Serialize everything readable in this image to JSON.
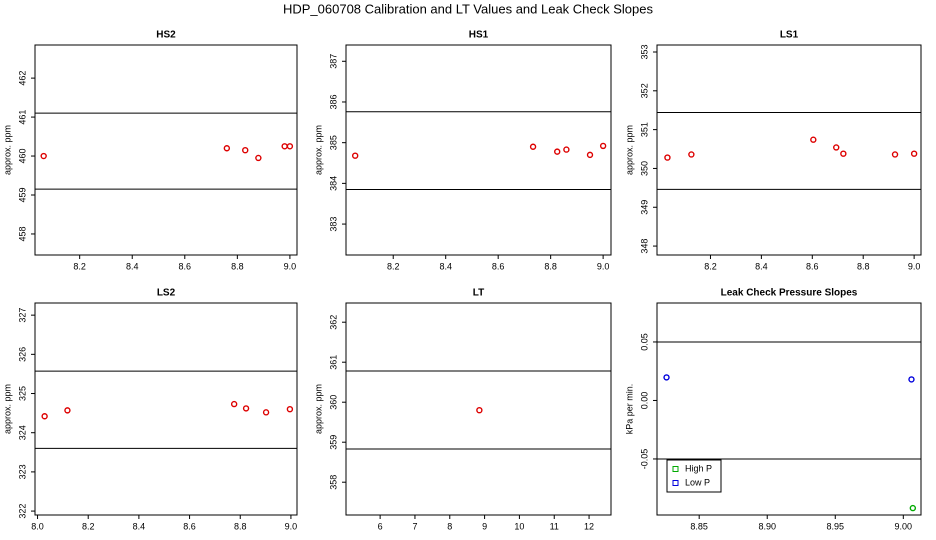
{
  "title": "HDP_060708  Calibration and LT Values and Leak Check Slopes",
  "chart_data": [
    {
      "type": "scatter",
      "title": "HS2",
      "ylabel": "approx. ppm",
      "x": [
        8.063,
        8.76,
        8.83,
        8.88,
        8.98,
        9.0
      ],
      "series": [
        {
          "color": "#dd0000",
          "values": [
            460.0,
            460.2,
            460.15,
            459.95,
            460.25,
            460.25
          ]
        }
      ],
      "xlim": [
        8.03,
        9.027
      ],
      "ylim": [
        457.46,
        462.85
      ],
      "xticks": [
        8.2,
        8.4,
        8.6,
        8.8,
        {
          "value": 9,
          "label": "9.0"
        }
      ],
      "yticks": [
        458,
        459,
        460,
        461,
        462
      ],
      "hlines": [
        461.1,
        459.15
      ]
    },
    {
      "type": "scatter",
      "title": "HS1",
      "ylabel": "approx. ppm",
      "x": [
        8.055,
        8.733,
        8.825,
        8.86,
        8.95,
        9.0
      ],
      "series": [
        {
          "color": "#dd0000",
          "values": [
            384.68,
            384.9,
            384.78,
            384.83,
            384.7,
            384.92
          ]
        }
      ],
      "xlim": [
        8.02,
        9.03
      ],
      "ylim": [
        382.24,
        387.4
      ],
      "xticks": [
        8.2,
        8.4,
        8.6,
        8.8,
        {
          "value": 9,
          "label": "9.0"
        }
      ],
      "yticks": [
        383,
        384,
        385,
        386,
        387
      ],
      "hlines": [
        385.76,
        383.85
      ]
    },
    {
      "type": "scatter",
      "title": "LS1",
      "ylabel": "approx. ppm",
      "x": [
        8.031,
        8.125,
        8.604,
        8.694,
        8.722,
        8.925,
        9.0
      ],
      "series": [
        {
          "color": "#dd0000",
          "values": [
            350.28,
            350.36,
            350.74,
            350.54,
            350.38,
            350.36,
            350.38
          ]
        }
      ],
      "xlim": [
        7.99,
        9.027
      ],
      "ylim": [
        347.77,
        353.18
      ],
      "xticks": [
        8.2,
        8.4,
        8.6,
        8.8,
        {
          "value": 9,
          "label": "9.0"
        }
      ],
      "yticks": [
        348,
        349,
        350,
        351,
        352,
        353
      ],
      "hlines": [
        351.44,
        349.46
      ]
    },
    {
      "type": "scatter",
      "title": "LS2",
      "ylabel": "approx. ppm",
      "x": [
        8.028,
        8.118,
        8.776,
        8.823,
        8.902,
        8.996
      ],
      "series": [
        {
          "color": "#dd0000",
          "values": [
            324.42,
            324.57,
            324.73,
            324.62,
            324.52,
            324.6
          ]
        }
      ],
      "xlim": [
        7.99,
        9.024
      ],
      "ylim": [
        321.9,
        327.31
      ],
      "xticks": [
        {
          "value": 8,
          "label": "8.0"
        },
        8.2,
        8.4,
        8.6,
        8.8,
        {
          "value": 9,
          "label": "9.0"
        }
      ],
      "yticks": [
        322,
        323,
        324,
        325,
        326,
        327
      ],
      "hlines": [
        325.57,
        323.6
      ]
    },
    {
      "type": "scatter",
      "title": "LT",
      "ylabel": "approx. ppm",
      "x": [
        8.85
      ],
      "series": [
        {
          "color": "#dd0000",
          "values": [
            359.8
          ]
        }
      ],
      "xlim": [
        5.02,
        12.63
      ],
      "ylim": [
        357.18,
        362.48
      ],
      "xticks": [
        6,
        7,
        8,
        9,
        10,
        11,
        12
      ],
      "yticks": [
        358,
        359,
        360,
        361,
        362
      ],
      "hlines": [
        360.78,
        358.83
      ]
    },
    {
      "type": "scatter",
      "title": "Leak Check Pressure Slopes",
      "ylabel": "kPa per min.",
      "series": [
        {
          "name": "High P",
          "color": "#00aa00",
          "x": [
            9.007
          ],
          "values": [
            -0.092
          ]
        },
        {
          "name": "Low P",
          "color": "#0000dd",
          "x": [
            8.826,
            9.006
          ],
          "values": [
            0.0197,
            0.018
          ]
        }
      ],
      "xlim": [
        8.819,
        9.013
      ],
      "ylim": [
        -0.0979,
        0.0833
      ],
      "xticks": [
        8.85,
        {
          "value": 8.9,
          "label": "8.90"
        },
        8.95,
        {
          "value": 9,
          "label": "9.00"
        }
      ],
      "yticks": [
        -0.05,
        {
          "value": 0,
          "label": "0.00"
        },
        0.05
      ],
      "hlines": [
        0.05,
        -0.05
      ],
      "legend": "bottom-left"
    }
  ]
}
